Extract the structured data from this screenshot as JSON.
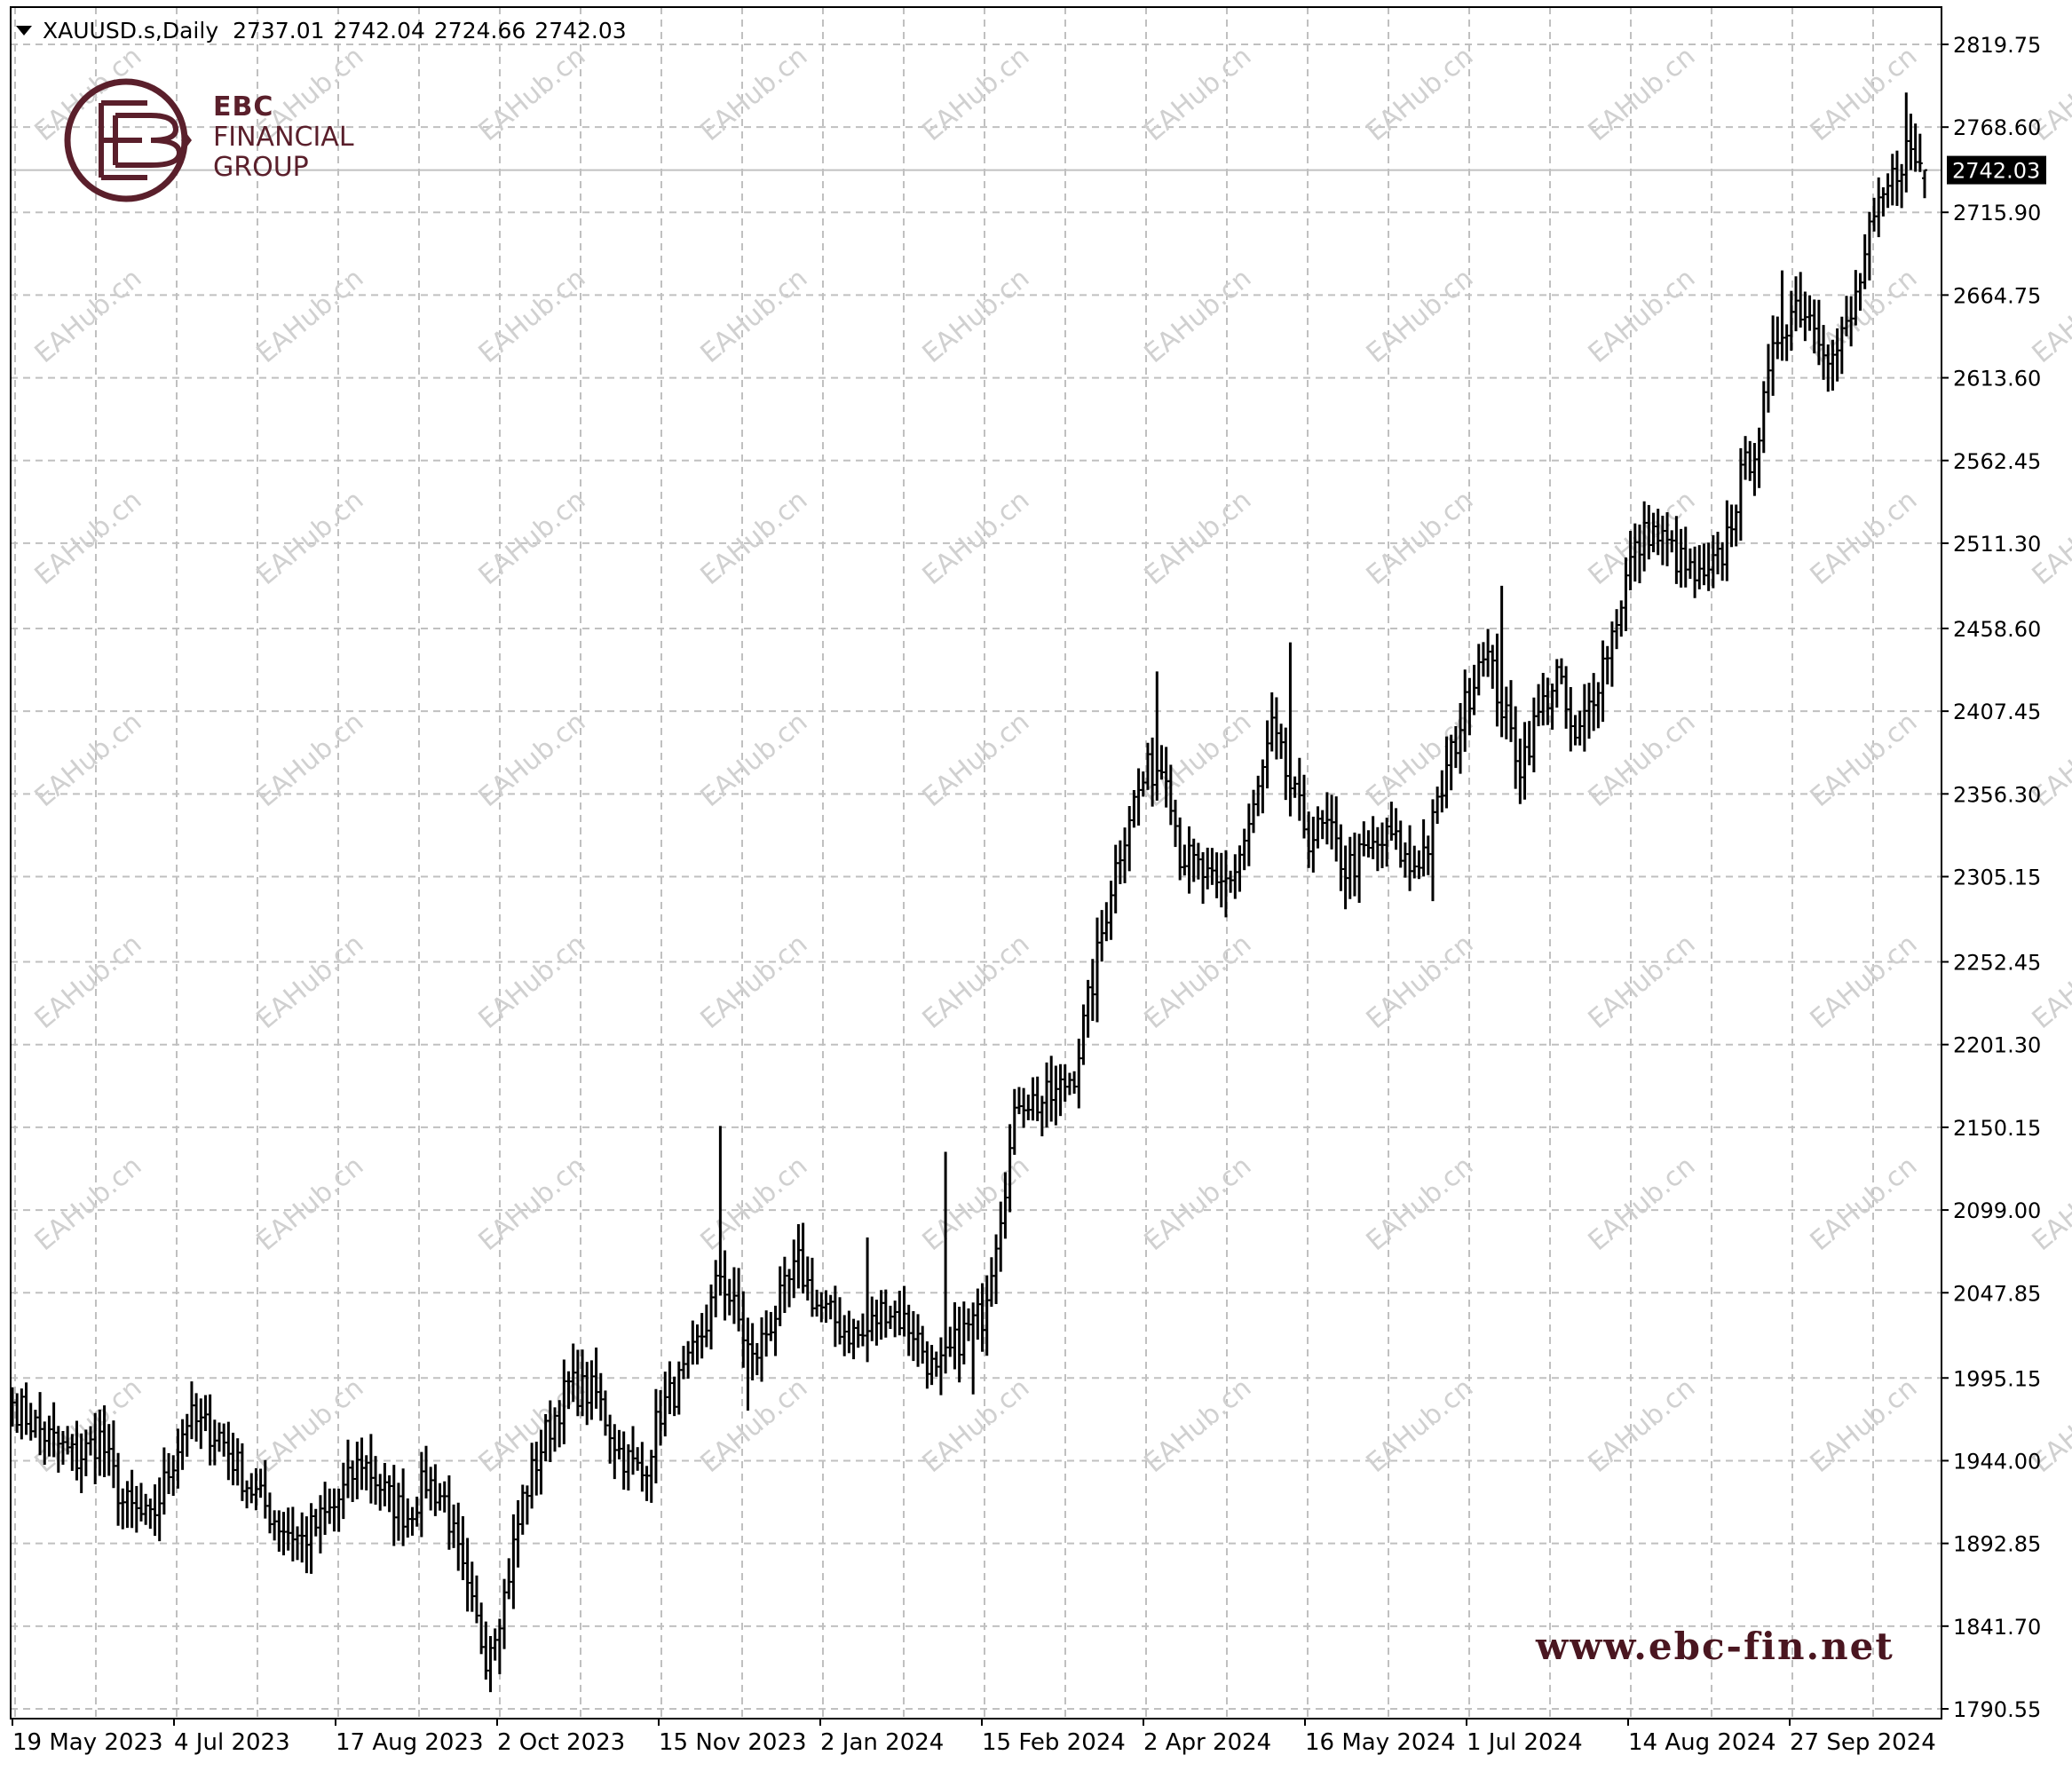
{
  "header": {
    "symbol": "XAUUSD.s,Daily",
    "open": "2737.01",
    "high": "2742.04",
    "low": "2724.66",
    "close": "2742.03"
  },
  "logo": {
    "line1": "EBC",
    "line2": "FINANCIAL",
    "line3": "GROUP",
    "color": "#5a1f2b"
  },
  "website": "www.ebc-fin.net",
  "watermark_text": "EAHub.cn",
  "current_price_label": "2742.03",
  "colors": {
    "bars": "#000000",
    "grid": "#c0c0c0",
    "price_line": "#c0c0c0",
    "watermark": "#d0d0d0",
    "logo": "#5a1f2b"
  },
  "chart_data": {
    "type": "ohlc-bar",
    "title": "XAUUSD.s,Daily",
    "y_ticks": [
      "2819.75",
      "2768.60",
      "2715.90",
      "2664.75",
      "2613.60",
      "2562.45",
      "2511.30",
      "2458.60",
      "2407.45",
      "2356.30",
      "2305.15",
      "2252.45",
      "2201.30",
      "2150.15",
      "2099.00",
      "2047.85",
      "1995.15",
      "1944.00",
      "1892.85",
      "1841.70",
      "1790.55"
    ],
    "x_ticks": [
      "19 May 2023",
      "4 Jul 2023",
      "17 Aug 2023",
      "2 Oct 2023",
      "15 Nov 2023",
      "2 Jan 2024",
      "15 Feb 2024",
      "2 Apr 2024",
      "16 May 2024",
      "1 Jul 2024",
      "14 Aug 2024",
      "27 Sep 2024"
    ],
    "ylim": [
      1790.55,
      2819.75
    ],
    "grid": true,
    "current_price": 2742.03,
    "series": [
      {
        "close_keyframes": [
          [
            0,
            1980
          ],
          [
            7,
            1960
          ],
          [
            14,
            1945
          ],
          [
            19,
            1958
          ],
          [
            24,
            1918
          ],
          [
            30,
            1905
          ],
          [
            38,
            1970
          ],
          [
            45,
            1960
          ],
          [
            51,
            1930
          ],
          [
            58,
            1905
          ],
          [
            63,
            1895
          ],
          [
            70,
            1915
          ],
          [
            76,
            1945
          ],
          [
            82,
            1920
          ],
          [
            86,
            1910
          ],
          [
            90,
            1932
          ],
          [
            94,
            1920
          ],
          [
            99,
            1860
          ],
          [
            103,
            1825
          ],
          [
            107,
            1860
          ],
          [
            111,
            1920
          ],
          [
            116,
            1960
          ],
          [
            121,
            1990
          ],
          [
            127,
            1985
          ],
          [
            132,
            1950
          ],
          [
            137,
            1935
          ],
          [
            141,
            1975
          ],
          [
            147,
            2000
          ],
          [
            151,
            2030
          ],
          [
            154,
            2060
          ],
          [
            158,
            2030
          ],
          [
            161,
            2005
          ],
          [
            165,
            2030
          ],
          [
            171,
            2065
          ],
          [
            175,
            2040
          ],
          [
            181,
            2025
          ],
          [
            185,
            2020
          ],
          [
            190,
            2040
          ],
          [
            196,
            2025
          ],
          [
            201,
            1995
          ],
          [
            206,
            2020
          ],
          [
            211,
            2035
          ],
          [
            215,
            2100
          ],
          [
            219,
            2170
          ],
          [
            223,
            2165
          ],
          [
            227,
            2170
          ],
          [
            231,
            2185
          ],
          [
            235,
            2240
          ],
          [
            239,
            2300
          ],
          [
            243,
            2345
          ],
          [
            247,
            2370
          ],
          [
            251,
            2375
          ],
          [
            254,
            2320
          ],
          [
            258,
            2310
          ],
          [
            262,
            2295
          ],
          [
            266,
            2310
          ],
          [
            270,
            2345
          ],
          [
            274,
            2395
          ],
          [
            278,
            2360
          ],
          [
            282,
            2330
          ],
          [
            286,
            2335
          ],
          [
            290,
            2310
          ],
          [
            295,
            2320
          ],
          [
            300,
            2330
          ],
          [
            304,
            2310
          ],
          [
            308,
            2325
          ],
          [
            312,
            2370
          ],
          [
            316,
            2410
          ],
          [
            320,
            2450
          ],
          [
            324,
            2410
          ],
          [
            328,
            2375
          ],
          [
            332,
            2405
          ],
          [
            336,
            2430
          ],
          [
            340,
            2385
          ],
          [
            344,
            2420
          ],
          [
            348,
            2455
          ],
          [
            352,
            2500
          ],
          [
            356,
            2520
          ],
          [
            360,
            2510
          ],
          [
            364,
            2495
          ],
          [
            368,
            2485
          ],
          [
            372,
            2505
          ],
          [
            376,
            2550
          ],
          [
            380,
            2580
          ],
          [
            384,
            2640
          ],
          [
            388,
            2660
          ],
          [
            392,
            2650
          ],
          [
            396,
            2625
          ],
          [
            400,
            2650
          ],
          [
            404,
            2700
          ],
          [
            408,
            2730
          ],
          [
            412,
            2755
          ],
          [
            416,
            2742.03
          ]
        ],
        "spike_highs": [
          [
            154,
            2151
          ],
          [
            186,
            2082
          ],
          [
            203,
            2135
          ],
          [
            236,
            2208
          ],
          [
            249,
            2432
          ],
          [
            278,
            2450
          ],
          [
            324,
            2485
          ],
          [
            350,
            2470
          ],
          [
            377,
            2515
          ],
          [
            385,
            2680
          ],
          [
            412,
            2790
          ]
        ],
        "dip_lows": [
          [
            103,
            1810
          ],
          [
            106,
            1812
          ],
          [
            160,
            1975
          ],
          [
            209,
            1985
          ],
          [
            264,
            2280
          ],
          [
            290,
            2285
          ],
          [
            309,
            2290
          ],
          [
            328,
            2350
          ],
          [
            395,
            2605
          ]
        ]
      }
    ]
  }
}
